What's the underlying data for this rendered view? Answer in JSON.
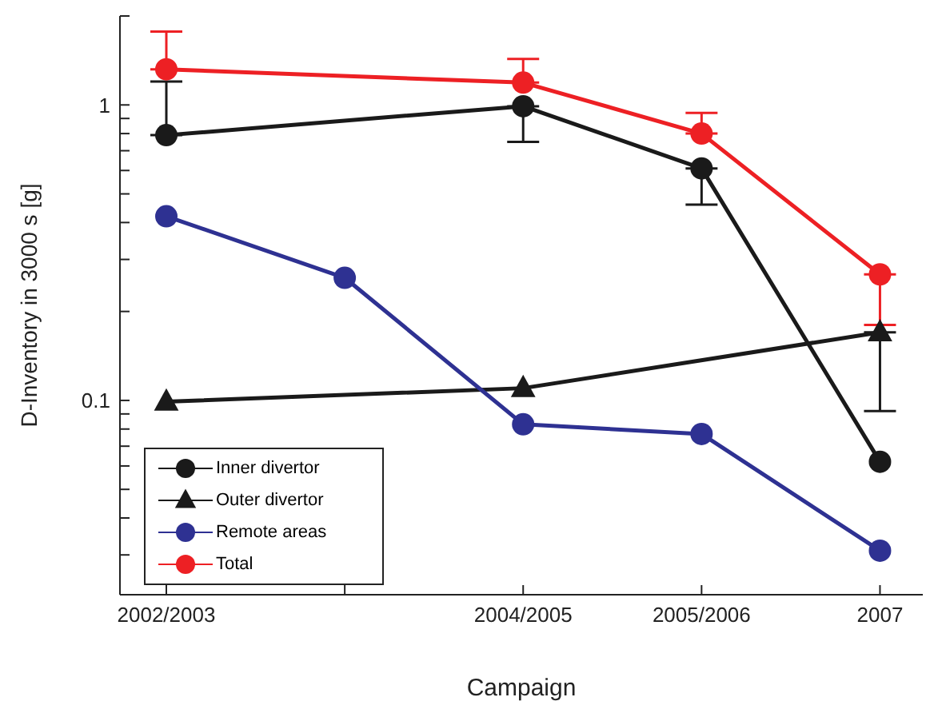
{
  "chart_data": {
    "type": "line",
    "xlabel": "Campaign",
    "ylabel": "D-Inventory in 3000 s [g]",
    "categories": [
      "2002/2003",
      null,
      "2004/2005",
      "2005/2006",
      "2007"
    ],
    "series": [
      {
        "name": "Inner divertor",
        "color": "#1a1a1a",
        "values": [
          0.79,
          null,
          0.99,
          0.61,
          0.062
        ],
        "errors": [
          [
            0.79,
            1.2
          ],
          null,
          [
            0.75,
            0.99
          ],
          [
            0.46,
            0.61
          ],
          null
        ]
      },
      {
        "name": "Outer divertor",
        "color": "#1a1a1a",
        "marker": "triangle",
        "values": [
          0.099,
          null,
          0.11,
          null,
          0.17
        ],
        "errors": [
          null,
          null,
          null,
          null,
          [
            0.092,
            0.17
          ]
        ]
      },
      {
        "name": "Remote areas",
        "color": "#2e3192",
        "values": [
          0.42,
          0.26,
          0.083,
          0.077,
          0.031
        ]
      },
      {
        "name": "Total",
        "color": "#ed2024",
        "marker": "circle",
        "values": [
          1.32,
          null,
          1.19,
          0.8,
          0.267
        ],
        "errors": [
          [
            1.32,
            1.77
          ],
          null,
          [
            1.19,
            1.43
          ],
          [
            0.8,
            0.94
          ],
          [
            0.18,
            0.267
          ]
        ]
      }
    ],
    "log": "y",
    "ylim": [
      0.022,
      2
    ],
    "yticks": [
      {
        "value": 0.03,
        "label": null
      },
      {
        "value": 0.04,
        "label": null
      },
      {
        "value": 0.05,
        "label": null
      },
      {
        "value": 0.06,
        "label": null
      },
      {
        "value": 0.07,
        "label": null
      },
      {
        "value": 0.08,
        "label": null
      },
      {
        "value": 0.09,
        "label": null
      },
      0.1,
      {
        "value": 0.2,
        "label": null
      },
      {
        "value": 0.3,
        "label": null
      },
      {
        "value": 0.4,
        "label": null
      },
      {
        "value": 0.5,
        "label": null
      },
      {
        "value": 0.6,
        "label": null
      },
      {
        "value": 0.7,
        "label": null
      },
      {
        "value": 0.8,
        "label": null
      },
      {
        "value": 0.9,
        "label": null
      },
      1,
      {
        "value": 2,
        "label": null
      }
    ],
    "legend": "bottom left",
    "grid": false,
    "marker": "circle",
    "line_style": "solid"
  }
}
